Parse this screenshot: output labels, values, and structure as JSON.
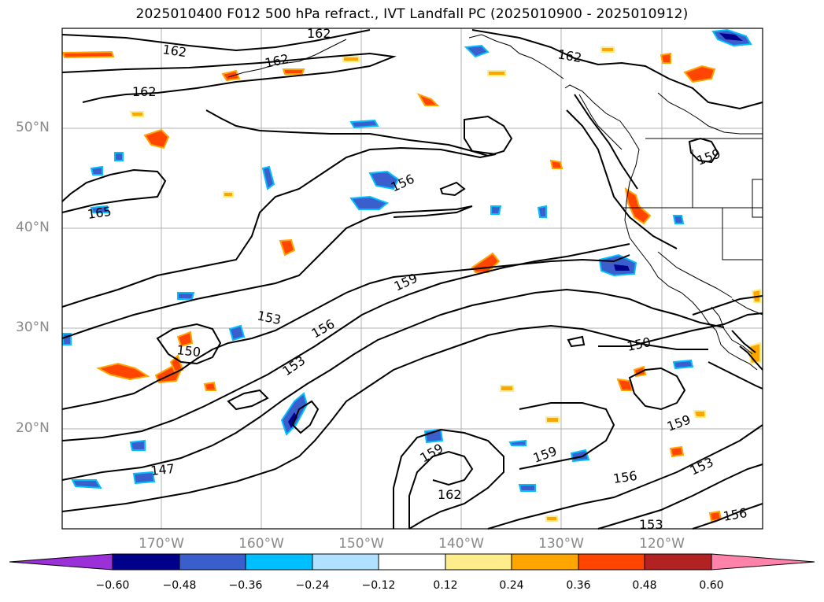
{
  "title": "2025010400 F012 500 hPa refract., IVT Landfall PC (2025010900 - 2025010912)",
  "lat_labels": [
    "50°N",
    "40°N",
    "30°N",
    "20°N"
  ],
  "lon_labels": [
    "170°W",
    "160°W",
    "150°W",
    "140°W",
    "130°W",
    "120°W"
  ],
  "contour_labels": [
    "162",
    "162",
    "162",
    "162",
    "162",
    "165",
    "156",
    "159",
    "159",
    "153",
    "150",
    "150",
    "156",
    "153",
    "147",
    "159",
    "159",
    "162",
    "156",
    "153",
    "156",
    "153",
    "159"
  ],
  "colorbar": {
    "ticks": [
      "−0.60",
      "−0.48",
      "−0.36",
      "−0.24",
      "−0.12",
      "0.12",
      "0.24",
      "0.36",
      "0.48",
      "0.60"
    ],
    "colors": [
      "#9b30d9",
      "#00008b",
      "#3a5fcd",
      "#00bfff",
      "#b0e2ff",
      "#ffffff",
      "#ffec8b",
      "#ffa500",
      "#ff4500",
      "#b22222",
      "#ff82ab"
    ]
  }
}
